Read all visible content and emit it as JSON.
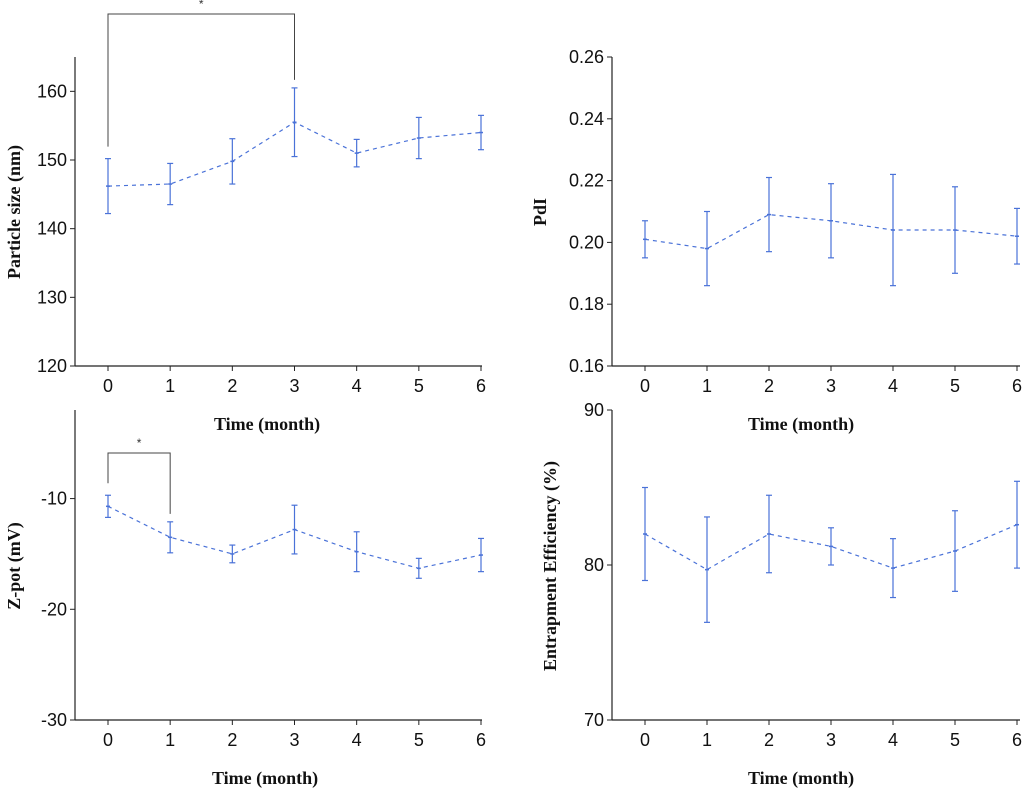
{
  "series_color": "#4a72d8",
  "bracket_color": "#444444",
  "chart_data": [
    {
      "id": "particle-size",
      "type": "line",
      "title": "",
      "xlabel": "Time (month)",
      "ylabel": "Particle size (nm)",
      "x": [
        0,
        1,
        2,
        3,
        4,
        5,
        6
      ],
      "x_ticks": [
        "0",
        "1",
        "2",
        "3",
        "4",
        "5",
        "6"
      ],
      "ylim": [
        120,
        165
      ],
      "y_ticks": [
        120,
        130,
        140,
        150,
        160
      ],
      "y_tick_labels": [
        "120",
        "130",
        "140",
        "150",
        "160"
      ],
      "values": [
        146.2,
        146.5,
        149.8,
        155.5,
        151.0,
        153.2,
        154.0
      ],
      "errors": [
        4.0,
        3.0,
        3.3,
        5.0,
        2.0,
        3.0,
        2.5
      ],
      "line_style": "dashed",
      "significance": [
        {
          "from": 0,
          "to": 3,
          "label": "*"
        }
      ]
    },
    {
      "id": "pdi",
      "type": "line",
      "title": "",
      "xlabel": "Time (month)",
      "ylabel": "PdI",
      "x": [
        0,
        1,
        2,
        3,
        4,
        5,
        6
      ],
      "x_ticks": [
        "0",
        "1",
        "2",
        "3",
        "4",
        "5",
        "6"
      ],
      "ylim": [
        0.16,
        0.26
      ],
      "y_ticks": [
        0.16,
        0.18,
        0.2,
        0.22,
        0.24,
        0.26
      ],
      "y_tick_labels": [
        "0.16",
        "0.18",
        "0.20",
        "0.22",
        "0.24",
        "0.26"
      ],
      "values": [
        0.201,
        0.198,
        0.209,
        0.207,
        0.204,
        0.204,
        0.202
      ],
      "errors": [
        0.006,
        0.012,
        0.012,
        0.012,
        0.018,
        0.014,
        0.009
      ],
      "line_style": "dashed",
      "significance": []
    },
    {
      "id": "zeta-potential",
      "type": "line",
      "title": "",
      "xlabel": "Time (month)",
      "ylabel": "Z-pot (mV)",
      "x": [
        0,
        1,
        2,
        3,
        4,
        5,
        6
      ],
      "x_ticks": [
        "0",
        "1",
        "2",
        "3",
        "4",
        "5",
        "6"
      ],
      "ylim": [
        -30,
        -2
      ],
      "y_ticks": [
        -30,
        -20,
        -10
      ],
      "y_tick_labels": [
        "-30",
        "-20",
        "-10"
      ],
      "values": [
        -10.7,
        -13.5,
        -15.0,
        -12.8,
        -14.8,
        -16.3,
        -15.1
      ],
      "errors": [
        1.0,
        1.4,
        0.8,
        2.2,
        1.8,
        0.9,
        1.5
      ],
      "line_style": "dashed",
      "significance": [
        {
          "from": 0,
          "to": 1,
          "label": "*"
        }
      ]
    },
    {
      "id": "entrapment-efficiency",
      "type": "line",
      "title": "",
      "xlabel": "Time (month)",
      "ylabel": "Entrapment Efficiency (%)",
      "x": [
        0,
        1,
        2,
        3,
        4,
        5,
        6
      ],
      "x_ticks": [
        "0",
        "1",
        "2",
        "3",
        "4",
        "5",
        "6"
      ],
      "ylim": [
        70,
        90
      ],
      "y_ticks": [
        70,
        80,
        90
      ],
      "y_tick_labels": [
        "70",
        "80",
        "90"
      ],
      "values": [
        82.0,
        79.7,
        82.0,
        81.2,
        79.8,
        80.9,
        82.6
      ],
      "errors": [
        3.0,
        3.4,
        2.5,
        1.2,
        1.9,
        2.6,
        2.8
      ],
      "line_style": "dashed",
      "significance": []
    }
  ]
}
